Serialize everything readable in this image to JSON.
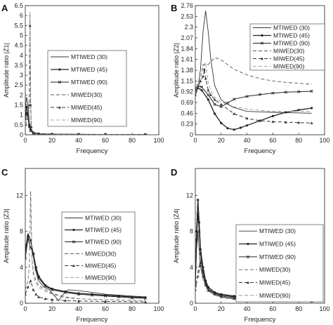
{
  "chart_data": [
    {
      "panel_label": "A",
      "type": "line",
      "xlabel": "Frequency",
      "ylabel": "Amplitude ratio |Z1|",
      "xlim": [
        0,
        100
      ],
      "ylim": [
        0,
        6.5
      ],
      "xticks": [
        "0",
        "20",
        "40",
        "60",
        "80",
        "100"
      ],
      "yticks": [
        "0",
        "0.5",
        "1",
        "1.5",
        "2",
        "2.5",
        "3",
        "3.5",
        "4",
        "4.5",
        "5",
        "5.5",
        "6",
        "6.5"
      ],
      "legend_position": "center-right",
      "grid": false,
      "series": [
        {
          "name": "MTIWED (30)",
          "x": [
            0,
            1,
            2,
            3,
            4,
            6,
            10,
            20,
            40,
            60,
            90
          ],
          "y": [
            1.3,
            1.9,
            1.5,
            0.6,
            0.3,
            0.12,
            0.06,
            0.03,
            0.02,
            0.01,
            0.01
          ]
        },
        {
          "name": "MTIWED (45)",
          "x": [
            0,
            1,
            2,
            3,
            4,
            6,
            10,
            20,
            40,
            60,
            90
          ],
          "y": [
            1.0,
            1.4,
            1.1,
            0.5,
            0.25,
            0.1,
            0.05,
            0.03,
            0.02,
            0.01,
            0.01
          ]
        },
        {
          "name": "MTIWED (90)",
          "x": [
            0,
            1,
            2,
            3,
            4,
            6,
            10,
            20,
            40,
            60,
            90
          ],
          "y": [
            0.8,
            1.1,
            0.9,
            0.4,
            0.2,
            0.08,
            0.04,
            0.02,
            0.01,
            0.01,
            0.01
          ]
        },
        {
          "name": "MIWED(30)",
          "x": [
            0,
            2,
            3,
            3.5,
            4,
            4.5,
            5,
            7,
            10,
            20,
            90
          ],
          "y": [
            0.5,
            0.8,
            1.5,
            6.1,
            1.5,
            0.4,
            0.2,
            0.08,
            0.04,
            0.02,
            0.01
          ]
        },
        {
          "name": "MIWED(45)",
          "x": [
            0,
            2,
            3,
            3.5,
            4,
            4.5,
            5,
            7,
            10,
            20,
            90
          ],
          "y": [
            0.5,
            0.8,
            1.5,
            5.5,
            1.5,
            0.4,
            0.2,
            0.08,
            0.04,
            0.02,
            0.01
          ]
        },
        {
          "name": "MIWED(90)",
          "x": [
            0,
            2,
            3,
            3.5,
            4,
            4.5,
            5,
            7,
            10,
            20,
            90
          ],
          "y": [
            0.5,
            0.8,
            1.5,
            6.2,
            1.5,
            0.4,
            0.2,
            0.08,
            0.04,
            0.02,
            0.01
          ]
        }
      ]
    },
    {
      "panel_label": "B",
      "type": "line",
      "xlabel": "Frequency",
      "ylabel": "Amplitude ratio |Z2|",
      "xlim": [
        0,
        100
      ],
      "ylim": [
        0,
        2.76
      ],
      "xticks": [
        "0",
        "20",
        "40",
        "60",
        "80",
        "100"
      ],
      "yticks": [
        "0",
        "0.23",
        "0.46",
        "0.69",
        "0.92",
        "1.15",
        "1.38",
        "1.61",
        "1.84",
        "2.07",
        "2.3",
        "2.53",
        "2.76"
      ],
      "legend_position": "top-right",
      "grid": false,
      "series": [
        {
          "name": "MTIWED (30)",
          "x": [
            0,
            2,
            4,
            6,
            8,
            10,
            12,
            15,
            20,
            25,
            30,
            40,
            60,
            90
          ],
          "y": [
            0.85,
            1.0,
            1.4,
            2.2,
            2.65,
            2.2,
            1.6,
            1.05,
            0.75,
            0.65,
            0.58,
            0.5,
            0.48,
            0.46
          ]
        },
        {
          "name": "MTIWED (45)",
          "x": [
            0,
            2,
            5,
            10,
            15,
            20,
            25,
            30,
            35,
            40,
            50,
            60,
            70,
            80,
            90
          ],
          "y": [
            0.95,
            1.0,
            0.95,
            0.75,
            0.45,
            0.25,
            0.14,
            0.11,
            0.15,
            0.2,
            0.3,
            0.4,
            0.48,
            0.53,
            0.57
          ]
        },
        {
          "name": "MTIWED (90)",
          "x": [
            0,
            2,
            5,
            10,
            15,
            20,
            25,
            30,
            40,
            50,
            60,
            70,
            80,
            90
          ],
          "y": [
            1.0,
            1.05,
            1.02,
            0.85,
            0.65,
            0.6,
            0.68,
            0.76,
            0.82,
            0.86,
            0.89,
            0.91,
            0.92,
            0.93
          ]
        },
        {
          "name": "MIWED(30)",
          "x": [
            0,
            2,
            4,
            6,
            8,
            10,
            15,
            20,
            25,
            30,
            40,
            50,
            60,
            70,
            80,
            90
          ],
          "y": [
            0.9,
            1.0,
            1.2,
            1.5,
            1.5,
            1.5,
            1.65,
            1.6,
            1.5,
            1.4,
            1.28,
            1.2,
            1.15,
            1.12,
            1.1,
            1.08
          ]
        },
        {
          "name": "MIWED(45)",
          "x": [
            0,
            2,
            4,
            6,
            7,
            8,
            10,
            12,
            15,
            20,
            30,
            40,
            50,
            60,
            70,
            80,
            90
          ],
          "y": [
            0.85,
            1.0,
            1.15,
            1.25,
            1.4,
            1.2,
            0.95,
            0.85,
            0.75,
            0.65,
            0.45,
            0.35,
            0.3,
            0.28,
            0.27,
            0.26,
            0.25
          ]
        },
        {
          "name": "MIWED(90)",
          "x": [
            0,
            2,
            4,
            6,
            8,
            10,
            12,
            15,
            20,
            30,
            40,
            50,
            60,
            70,
            80,
            90
          ],
          "y": [
            0.9,
            1.05,
            1.2,
            1.45,
            1.55,
            1.1,
            0.95,
            0.8,
            0.7,
            0.6,
            0.55,
            0.52,
            0.5,
            0.5,
            0.5,
            0.5
          ]
        }
      ]
    },
    {
      "panel_label": "C",
      "type": "line",
      "xlabel": "Frequency",
      "ylabel": "Amplitude ratio |Z3|",
      "xlim": [
        0,
        100
      ],
      "ylim": [
        0,
        15
      ],
      "xticks": [
        "0",
        "20",
        "40",
        "60",
        "80",
        "100"
      ],
      "yticks": [
        "0",
        "4",
        "8",
        "12"
      ],
      "legend_position": "top-right",
      "grid": false,
      "series": [
        {
          "name": "MTIWED (30)",
          "x": [
            0,
            2,
            4,
            6,
            8,
            10,
            14,
            18,
            22,
            25,
            28,
            32,
            40,
            50,
            60,
            70,
            80,
            90
          ],
          "y": [
            5.5,
            7.8,
            7.0,
            5.2,
            3.5,
            2.5,
            1.8,
            1.5,
            0.8,
            0.3,
            0.9,
            1.5,
            1.4,
            1.2,
            1.0,
            0.9,
            0.8,
            0.7
          ]
        },
        {
          "name": "MTIWED (45)",
          "x": [
            0,
            2,
            4,
            6,
            8,
            10,
            15,
            20,
            30,
            40,
            50,
            60,
            70,
            80,
            90
          ],
          "y": [
            6.0,
            7.5,
            7.0,
            5.5,
            4.0,
            3.0,
            2.0,
            1.6,
            1.3,
            1.1,
            1.0,
            0.9,
            0.8,
            0.7,
            0.65
          ]
        },
        {
          "name": "MTIWED (90)",
          "x": [
            0,
            2,
            4,
            6,
            8,
            10,
            15,
            20,
            30,
            40,
            50,
            60,
            70,
            80,
            90
          ],
          "y": [
            5.0,
            7.2,
            6.2,
            5.5,
            3.8,
            2.8,
            1.9,
            1.5,
            1.2,
            1.0,
            0.9,
            0.8,
            0.7,
            0.6,
            0.55
          ]
        },
        {
          "name": "MIWED(30)",
          "x": [
            0,
            2,
            3,
            4,
            5,
            6,
            8,
            10,
            15,
            20,
            30,
            40,
            60,
            90
          ],
          "y": [
            1.5,
            2.5,
            4.0,
            12.5,
            5.0,
            3.5,
            2.5,
            2.0,
            1.5,
            1.1,
            0.7,
            0.5,
            0.4,
            0.3
          ]
        },
        {
          "name": "MIWED(45)",
          "x": [
            0,
            2,
            4,
            6,
            8,
            10,
            15,
            20,
            30,
            40,
            60,
            90
          ],
          "y": [
            1.0,
            1.8,
            2.5,
            1.5,
            1.0,
            0.7,
            0.5,
            0.4,
            0.3,
            0.25,
            0.2,
            0.15
          ]
        },
        {
          "name": "MIWED(90)",
          "x": [
            0,
            2,
            3,
            4,
            5,
            6,
            8,
            10,
            15,
            20,
            30,
            40,
            60,
            90
          ],
          "y": [
            1.5,
            2.5,
            4.0,
            11.5,
            5.0,
            3.0,
            2.2,
            1.8,
            1.3,
            1.0,
            0.6,
            0.5,
            0.4,
            0.3
          ]
        }
      ]
    },
    {
      "panel_label": "D",
      "type": "line",
      "xlabel": "Frequency",
      "ylabel": "Amplitude ratio |Z4|",
      "xlim": [
        0,
        100
      ],
      "ylim": [
        0,
        15
      ],
      "xticks": [
        "0",
        "20",
        "40",
        "60",
        "80",
        "100"
      ],
      "yticks": [
        "0",
        "4",
        "8",
        "12"
      ],
      "legend_position": "top-right",
      "grid": false,
      "series": [
        {
          "name": "MTIWED (30)",
          "x": [
            0,
            1,
            2,
            3,
            4,
            6,
            8,
            10,
            15,
            20,
            30,
            40,
            60,
            90
          ],
          "y": [
            2.0,
            6.0,
            8.0,
            6.0,
            4.0,
            3.0,
            2.0,
            1.5,
            1.0,
            0.8,
            0.6,
            0.5,
            0.4,
            0.3
          ]
        },
        {
          "name": "MTIWED (45)",
          "x": [
            0,
            1,
            2,
            3,
            4,
            6,
            8,
            10,
            15,
            20,
            30,
            40,
            60,
            90
          ],
          "y": [
            2.0,
            8.0,
            11.5,
            9.0,
            6.0,
            4.0,
            2.5,
            1.8,
            1.2,
            1.0,
            0.8,
            0.6,
            0.5,
            0.4
          ]
        },
        {
          "name": "MTIWED (90)",
          "x": [
            0,
            1,
            2,
            3,
            4,
            6,
            8,
            10,
            15,
            20,
            30,
            40,
            60,
            90
          ],
          "y": [
            2.0,
            7.0,
            10.0,
            8.0,
            5.5,
            3.5,
            2.2,
            1.6,
            1.1,
            0.9,
            0.7,
            0.5,
            0.4,
            0.3
          ]
        },
        {
          "name": "MIWED(30)",
          "x": [
            0,
            2,
            4,
            6,
            8,
            10,
            15,
            20,
            30,
            40,
            60,
            90
          ],
          "y": [
            1.5,
            3.5,
            5.0,
            3.0,
            2.0,
            1.5,
            1.0,
            0.7,
            0.5,
            0.4,
            0.3,
            0.2
          ]
        },
        {
          "name": "MIWED(45)",
          "x": [
            0,
            2,
            4,
            6,
            8,
            10,
            15,
            20,
            30,
            40,
            60,
            90
          ],
          "y": [
            1.5,
            3.0,
            4.5,
            3.0,
            2.0,
            1.4,
            1.0,
            0.7,
            0.5,
            0.4,
            0.3,
            0.2
          ]
        },
        {
          "name": "MIWED(90)",
          "x": [
            0,
            2,
            4,
            6,
            8,
            10,
            15,
            20,
            30,
            40,
            60,
            90
          ],
          "y": [
            1.5,
            3.0,
            4.0,
            2.5,
            1.8,
            1.3,
            0.9,
            0.6,
            0.45,
            0.35,
            0.25,
            0.2
          ]
        }
      ]
    }
  ]
}
